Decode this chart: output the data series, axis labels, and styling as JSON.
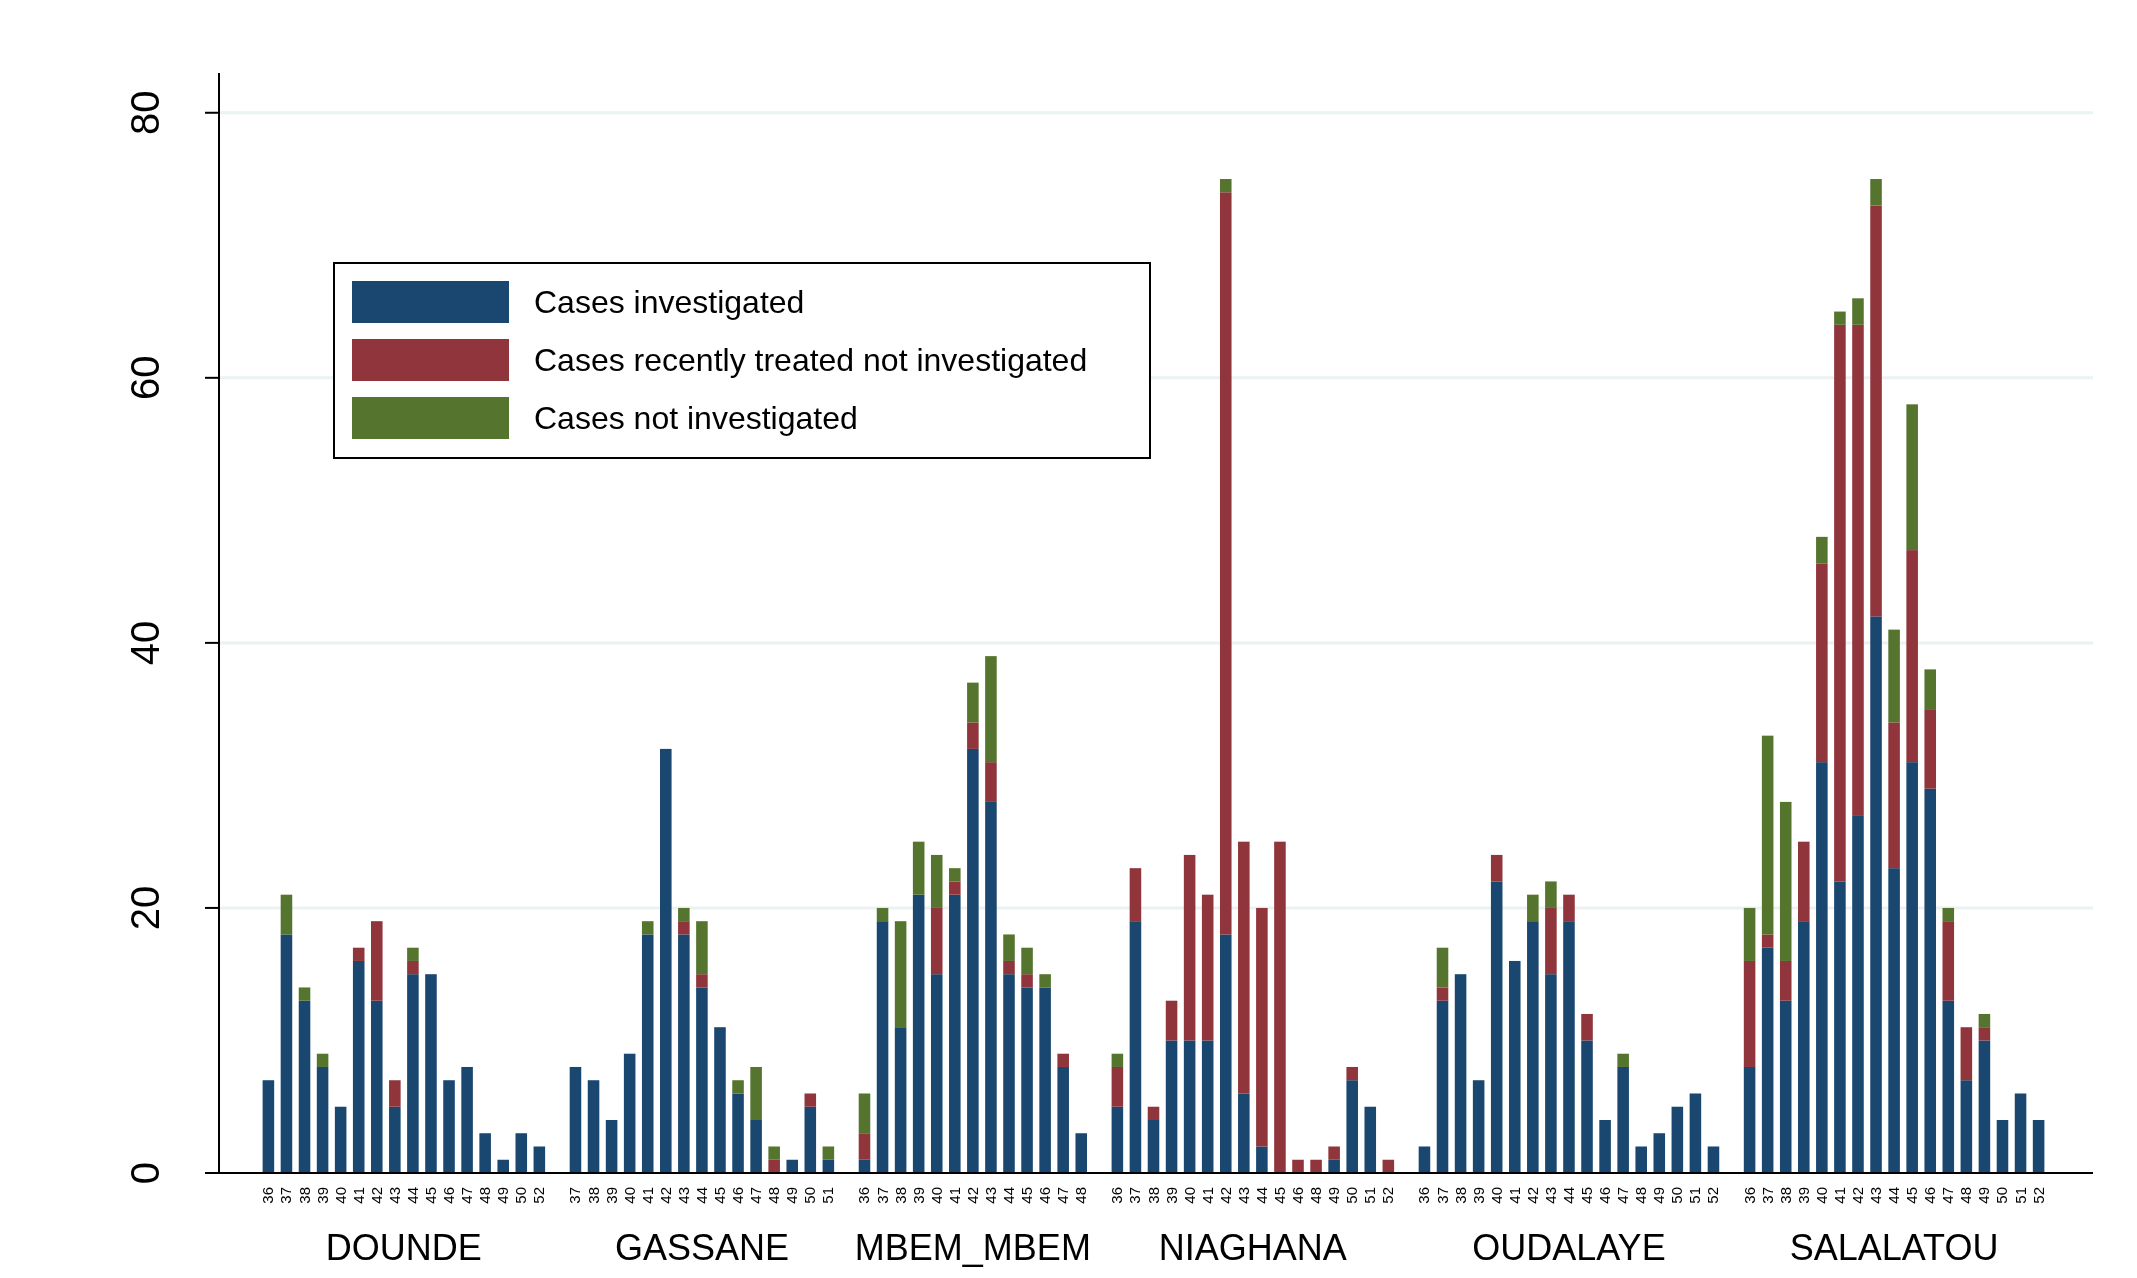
{
  "chart_data": {
    "type": "bar",
    "stacked": true,
    "categories": [
      "36",
      "37",
      "38",
      "39",
      "40",
      "41",
      "42",
      "43",
      "44",
      "45",
      "46",
      "47",
      "48",
      "49",
      "50",
      "52",
      null,
      "37",
      "38",
      "39",
      "40",
      "41",
      "42",
      "43",
      "44",
      "45",
      "46",
      "47",
      "48",
      "49",
      "50",
      "51",
      null,
      "36",
      "37",
      "38",
      "39",
      "40",
      "41",
      "42",
      "43",
      "44",
      "45",
      "46",
      "47",
      "48",
      null,
      "36",
      "37",
      "38",
      "39",
      "40",
      "41",
      "42",
      "43",
      "44",
      "45",
      "46",
      "48",
      "49",
      "50",
      "51",
      "52",
      null,
      "36",
      "37",
      "38",
      "39",
      "40",
      "41",
      "42",
      "43",
      "44",
      "45",
      "46",
      "47",
      "48",
      "49",
      "50",
      "51",
      "52",
      null,
      "36",
      "37",
      "38",
      "39",
      "40",
      "41",
      "42",
      "43",
      "44",
      "45",
      "46",
      "47",
      "48",
      "49",
      "50",
      "51",
      "52"
    ],
    "series": [
      {
        "name": "Cases investigated",
        "color": "#1a476f",
        "values": [
          7,
          18,
          13,
          8,
          5,
          16,
          13,
          5,
          15,
          15,
          7,
          8,
          3,
          1,
          3,
          2,
          null,
          8,
          7,
          4,
          9,
          18,
          32,
          18,
          14,
          11,
          6,
          4,
          0,
          1,
          5,
          1,
          null,
          1,
          19,
          11,
          21,
          15,
          21,
          32,
          28,
          15,
          14,
          14,
          8,
          3,
          null,
          5,
          19,
          4,
          10,
          10,
          10,
          18,
          6,
          2,
          0,
          0,
          0,
          1,
          7,
          5,
          0,
          null,
          2,
          13,
          15,
          7,
          22,
          16,
          19,
          15,
          19,
          10,
          4,
          8,
          2,
          3,
          5,
          6,
          2,
          null,
          8,
          17,
          13,
          19,
          31,
          22,
          27,
          42,
          23,
          31,
          29,
          13,
          7,
          10,
          4,
          6,
          4
        ]
      },
      {
        "name": "Cases recently treated not investigated",
        "color": "#90353b",
        "values": [
          0,
          0,
          0,
          0,
          0,
          1,
          6,
          2,
          1,
          0,
          0,
          0,
          0,
          0,
          0,
          0,
          null,
          0,
          0,
          0,
          0,
          0,
          0,
          1,
          1,
          0,
          0,
          0,
          1,
          0,
          1,
          0,
          null,
          2,
          0,
          0,
          0,
          5,
          1,
          2,
          3,
          1,
          1,
          0,
          1,
          0,
          null,
          3,
          4,
          1,
          3,
          14,
          11,
          56,
          19,
          18,
          25,
          1,
          1,
          1,
          1,
          0,
          1,
          null,
          0,
          1,
          0,
          0,
          2,
          0,
          0,
          5,
          2,
          2,
          0,
          0,
          0,
          0,
          0,
          0,
          0,
          null,
          8,
          1,
          3,
          6,
          15,
          42,
          37,
          31,
          11,
          16,
          6,
          6,
          4,
          1,
          0,
          0,
          0
        ]
      },
      {
        "name": "Cases not investigated",
        "color": "#55752f",
        "values": [
          0,
          3,
          1,
          1,
          0,
          0,
          0,
          0,
          1,
          0,
          0,
          0,
          0,
          0,
          0,
          0,
          null,
          0,
          0,
          0,
          0,
          1,
          0,
          1,
          4,
          0,
          1,
          4,
          1,
          0,
          0,
          1,
          null,
          3,
          1,
          8,
          4,
          4,
          1,
          3,
          8,
          2,
          2,
          1,
          0,
          0,
          null,
          1,
          0,
          0,
          0,
          0,
          0,
          1,
          0,
          0,
          0,
          0,
          0,
          0,
          0,
          0,
          0,
          null,
          0,
          3,
          0,
          0,
          0,
          0,
          2,
          2,
          0,
          0,
          0,
          1,
          0,
          0,
          0,
          0,
          0,
          null,
          4,
          15,
          12,
          0,
          2,
          1,
          2,
          2,
          7,
          11,
          3,
          1,
          0,
          1,
          0,
          0,
          0
        ]
      }
    ],
    "ylim": [
      0,
      83
    ],
    "yticks": [
      0,
      20,
      40,
      60,
      80
    ],
    "grid": "y",
    "legend": "top left",
    "annotations": [
      "DOUNDE",
      "GASSANE",
      "MBEM_MBEM",
      "NIAGHANA",
      "OUDALAYE",
      "SALALATOU"
    ]
  }
}
